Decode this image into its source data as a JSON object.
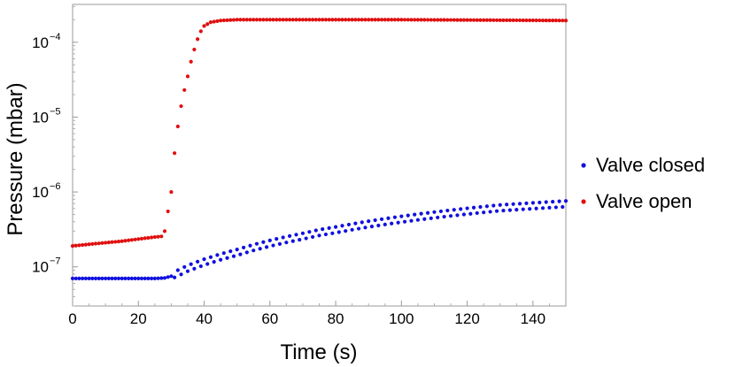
{
  "chart_data": {
    "type": "scatter",
    "xlabel": "Time (s)",
    "ylabel": "Pressure (mbar)",
    "xlim": [
      0,
      150
    ],
    "ylim": [
      3e-08,
      0.00032
    ],
    "yscale": "log",
    "grid": false,
    "legend_position": "right",
    "x_ticks": [
      {
        "value": 0,
        "label": "0"
      },
      {
        "value": 20,
        "label": "20"
      },
      {
        "value": 40,
        "label": "40"
      },
      {
        "value": 60,
        "label": "60"
      },
      {
        "value": 80,
        "label": "80"
      },
      {
        "value": 100,
        "label": "100"
      },
      {
        "value": 120,
        "label": "120"
      },
      {
        "value": 140,
        "label": "140"
      }
    ],
    "y_ticks": [
      {
        "value": 1e-07,
        "base": "10",
        "exp": "−7"
      },
      {
        "value": 1e-06,
        "base": "10",
        "exp": "−6"
      },
      {
        "value": 1e-05,
        "base": "10",
        "exp": "−5"
      },
      {
        "value": 0.0001,
        "base": "10",
        "exp": "−4"
      }
    ],
    "series": [
      {
        "name": "Valve closed",
        "color": "#1010e0",
        "points": [
          [
            0,
            7e-08
          ],
          [
            5,
            7e-08
          ],
          [
            10,
            7e-08
          ],
          [
            15,
            7e-08
          ],
          [
            20,
            7e-08
          ],
          [
            25,
            7e-08
          ],
          [
            28,
            7.1e-08
          ],
          [
            30,
            7.5e-08
          ],
          [
            32,
            8.2e-08
          ],
          [
            35,
            9.5e-08
          ],
          [
            40,
            1.15e-07
          ],
          [
            45,
            1.35e-07
          ],
          [
            50,
            1.55e-07
          ],
          [
            55,
            1.8e-07
          ],
          [
            60,
            2.05e-07
          ],
          [
            65,
            2.3e-07
          ],
          [
            70,
            2.55e-07
          ],
          [
            75,
            2.85e-07
          ],
          [
            80,
            3.1e-07
          ],
          [
            85,
            3.4e-07
          ],
          [
            90,
            3.7e-07
          ],
          [
            95,
            4e-07
          ],
          [
            100,
            4.3e-07
          ],
          [
            105,
            4.6e-07
          ],
          [
            110,
            4.9e-07
          ],
          [
            115,
            5.2e-07
          ],
          [
            120,
            5.5e-07
          ],
          [
            125,
            5.8e-07
          ],
          [
            130,
            6.1e-07
          ],
          [
            135,
            6.3e-07
          ],
          [
            140,
            6.5e-07
          ],
          [
            145,
            6.7e-07
          ],
          [
            150,
            6.9e-07
          ]
        ]
      },
      {
        "name": "Valve open",
        "color": "#e01010",
        "points": [
          [
            0,
            1.9e-07
          ],
          [
            5,
            2e-07
          ],
          [
            10,
            2.1e-07
          ],
          [
            15,
            2.2e-07
          ],
          [
            20,
            2.35e-07
          ],
          [
            25,
            2.5e-07
          ],
          [
            27,
            2.55e-07
          ],
          [
            28,
            3e-07
          ],
          [
            29,
            5.5e-07
          ],
          [
            30,
            1e-06
          ],
          [
            31,
            3.3e-06
          ],
          [
            32,
            7.5e-06
          ],
          [
            33,
            1.4e-05
          ],
          [
            34,
            2.3e-05
          ],
          [
            35,
            3.5e-05
          ],
          [
            36,
            5.5e-05
          ],
          [
            37,
            8e-05
          ],
          [
            38,
            0.00011
          ],
          [
            39,
            0.00014
          ],
          [
            40,
            0.000165
          ],
          [
            42,
            0.000185
          ],
          [
            45,
            0.000195
          ],
          [
            50,
            0.0002
          ],
          [
            60,
            0.0002
          ],
          [
            80,
            0.0002
          ],
          [
            100,
            0.0002
          ],
          [
            120,
            0.000198
          ],
          [
            150,
            0.000195
          ]
        ]
      }
    ]
  }
}
